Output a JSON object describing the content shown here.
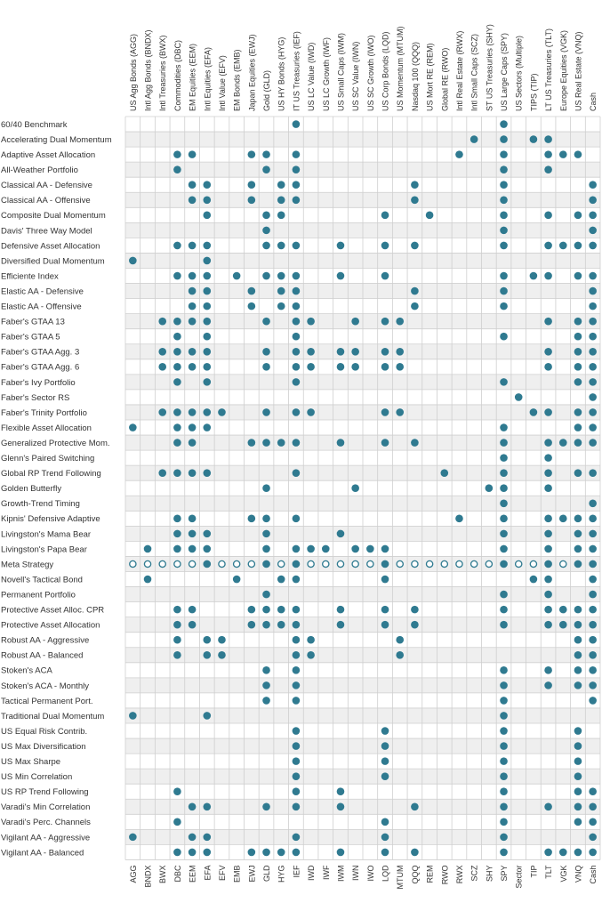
{
  "chart_data": {
    "type": "table",
    "title": "",
    "columns": [
      {
        "name": "US Agg Bonds (AGG)",
        "ticker": "AGG"
      },
      {
        "name": "Intl Agg Bonds (BNDX)",
        "ticker": "BNDX"
      },
      {
        "name": "Intl Treasuries (BWX)",
        "ticker": "BWX"
      },
      {
        "name": "Commodities (DBC)",
        "ticker": "DBC"
      },
      {
        "name": "EM Equities (EEM)",
        "ticker": "EEM"
      },
      {
        "name": "Intl Equities (EFA)",
        "ticker": "EFA"
      },
      {
        "name": "Intl Value (EFV)",
        "ticker": "EFV"
      },
      {
        "name": "EM Bonds (EMB)",
        "ticker": "EMB"
      },
      {
        "name": "Japan Equities (EWJ)",
        "ticker": "EWJ"
      },
      {
        "name": "Gold (GLD)",
        "ticker": "GLD"
      },
      {
        "name": "US HY Bonds (HYG)",
        "ticker": "HYG"
      },
      {
        "name": "IT US Treasuries (IEF)",
        "ticker": "IEF"
      },
      {
        "name": "US LC Value (IWD)",
        "ticker": "IWD"
      },
      {
        "name": "US LC Growth (IWF)",
        "ticker": "IWF"
      },
      {
        "name": "US Small Caps (IWM)",
        "ticker": "IWM"
      },
      {
        "name": "US SC Value (IWN)",
        "ticker": "IWN"
      },
      {
        "name": "US SC Growth (IWO)",
        "ticker": "IWO"
      },
      {
        "name": "US Corp Bonds (LQD)",
        "ticker": "LQD"
      },
      {
        "name": "US Momentum (MTUM)",
        "ticker": "MTUM"
      },
      {
        "name": "Nasdaq 100 (QQQ)",
        "ticker": "QQQ"
      },
      {
        "name": "US Mort RE (REM)",
        "ticker": "REM"
      },
      {
        "name": "Global RE (RWO)",
        "ticker": "RWO"
      },
      {
        "name": "Intl Real Estate (RWX)",
        "ticker": "RWX"
      },
      {
        "name": "Intl Small Caps (SCZ)",
        "ticker": "SCZ"
      },
      {
        "name": "ST US Treasuries (SHY)",
        "ticker": "SHY"
      },
      {
        "name": "US Large Caps (SPY)",
        "ticker": "SPY"
      },
      {
        "name": "US Sectors (Multiple)",
        "ticker": "Sector"
      },
      {
        "name": "TIPS (TIP)",
        "ticker": "TIP"
      },
      {
        "name": "LT US Treasuries (TLT)",
        "ticker": "TLT"
      },
      {
        "name": "Europe Equities (VGK)",
        "ticker": "VGK"
      },
      {
        "name": "US Real Estate (VNQ)",
        "ticker": "VNQ"
      },
      {
        "name": "Cash",
        "ticker": "Cash"
      }
    ],
    "rows": [
      {
        "name": "60/40 Benchmark",
        "holds": [
          "IEF",
          "SPY"
        ]
      },
      {
        "name": "Accelerating Dual Momentum",
        "holds": [
          "SCZ",
          "SPY",
          "TIP",
          "TLT"
        ]
      },
      {
        "name": "Adaptive Asset Allocation",
        "holds": [
          "DBC",
          "EEM",
          "EWJ",
          "GLD",
          "IEF",
          "RWX",
          "SPY",
          "TLT",
          "VGK",
          "VNQ"
        ]
      },
      {
        "name": "All-Weather Portfolio",
        "holds": [
          "DBC",
          "GLD",
          "IEF",
          "SPY",
          "TLT"
        ]
      },
      {
        "name": "Classical AA - Defensive",
        "holds": [
          "EEM",
          "EFA",
          "EWJ",
          "HYG",
          "IEF",
          "QQQ",
          "SPY",
          "Cash"
        ]
      },
      {
        "name": "Classical AA - Offensive",
        "holds": [
          "EEM",
          "EFA",
          "EWJ",
          "HYG",
          "IEF",
          "QQQ",
          "SPY",
          "Cash"
        ]
      },
      {
        "name": "Composite Dual Momentum",
        "holds": [
          "EFA",
          "GLD",
          "HYG",
          "LQD",
          "REM",
          "SPY",
          "TLT",
          "VNQ",
          "Cash"
        ]
      },
      {
        "name": "Davis' Three Way Model",
        "holds": [
          "GLD",
          "SPY",
          "Cash"
        ]
      },
      {
        "name": "Defensive Asset Allocation",
        "holds": [
          "DBC",
          "EEM",
          "EFA",
          "GLD",
          "HYG",
          "IEF",
          "IWM",
          "LQD",
          "QQQ",
          "SPY",
          "TLT",
          "VGK",
          "VNQ",
          "Cash"
        ]
      },
      {
        "name": "Diversified Dual Momentum",
        "holds": [
          "AGG",
          "EFA"
        ]
      },
      {
        "name": "Efficiente Index",
        "holds": [
          "DBC",
          "EEM",
          "EFA",
          "EMB",
          "GLD",
          "HYG",
          "IEF",
          "IWM",
          "LQD",
          "SPY",
          "TIP",
          "TLT",
          "VNQ",
          "Cash"
        ]
      },
      {
        "name": "Elastic AA - Defensive",
        "holds": [
          "EEM",
          "EFA",
          "EWJ",
          "HYG",
          "IEF",
          "QQQ",
          "SPY",
          "Cash"
        ]
      },
      {
        "name": "Elastic AA - Offensive",
        "holds": [
          "EEM",
          "EFA",
          "EWJ",
          "HYG",
          "IEF",
          "QQQ",
          "SPY",
          "Cash"
        ]
      },
      {
        "name": "Faber's GTAA 13",
        "holds": [
          "BWX",
          "DBC",
          "EEM",
          "EFA",
          "GLD",
          "IEF",
          "IWD",
          "IWN",
          "LQD",
          "MTUM",
          "TLT",
          "VNQ",
          "Cash"
        ]
      },
      {
        "name": "Faber's GTAA 5",
        "holds": [
          "DBC",
          "EFA",
          "IEF",
          "SPY",
          "VNQ",
          "Cash"
        ]
      },
      {
        "name": "Faber's GTAA Agg. 3",
        "holds": [
          "BWX",
          "DBC",
          "EEM",
          "EFA",
          "GLD",
          "IEF",
          "IWD",
          "IWM",
          "IWN",
          "LQD",
          "MTUM",
          "TLT",
          "VNQ",
          "Cash"
        ]
      },
      {
        "name": "Faber's GTAA Agg. 6",
        "holds": [
          "BWX",
          "DBC",
          "EEM",
          "EFA",
          "GLD",
          "IEF",
          "IWD",
          "IWM",
          "IWN",
          "LQD",
          "MTUM",
          "TLT",
          "VNQ",
          "Cash"
        ]
      },
      {
        "name": "Faber's Ivy Portfolio",
        "holds": [
          "DBC",
          "EFA",
          "IEF",
          "SPY",
          "VNQ",
          "Cash"
        ]
      },
      {
        "name": "Faber's Sector RS",
        "holds": [
          "Sector",
          "Cash"
        ]
      },
      {
        "name": "Faber's Trinity Portfolio",
        "holds": [
          "BWX",
          "DBC",
          "EEM",
          "EFA",
          "EFV",
          "GLD",
          "IEF",
          "IWD",
          "LQD",
          "MTUM",
          "TIP",
          "TLT",
          "VNQ",
          "Cash"
        ]
      },
      {
        "name": "Flexible Asset Allocation",
        "holds": [
          "AGG",
          "DBC",
          "EEM",
          "EFA",
          "SPY",
          "VNQ",
          "Cash"
        ]
      },
      {
        "name": "Generalized Protective Mom.",
        "holds": [
          "DBC",
          "EEM",
          "EWJ",
          "GLD",
          "HYG",
          "IEF",
          "IWM",
          "LQD",
          "QQQ",
          "SPY",
          "TLT",
          "VGK",
          "VNQ",
          "Cash"
        ]
      },
      {
        "name": "Glenn's Paired Switching",
        "holds": [
          "SPY",
          "TLT"
        ]
      },
      {
        "name": "Global RP Trend Following",
        "holds": [
          "BWX",
          "DBC",
          "EEM",
          "EFA",
          "IEF",
          "RWO",
          "SPY",
          "TLT",
          "VNQ",
          "Cash"
        ]
      },
      {
        "name": "Golden Butterfly",
        "holds": [
          "GLD",
          "IWN",
          "SHY",
          "SPY",
          "TLT"
        ]
      },
      {
        "name": "Growth-Trend Timing",
        "holds": [
          "SPY",
          "Cash"
        ]
      },
      {
        "name": "Kipnis' Defensive Adaptive",
        "holds": [
          "DBC",
          "EEM",
          "EWJ",
          "GLD",
          "IEF",
          "RWX",
          "SPY",
          "TLT",
          "VGK",
          "VNQ",
          "Cash"
        ]
      },
      {
        "name": "Livingston's Mama Bear",
        "holds": [
          "DBC",
          "EEM",
          "EFA",
          "GLD",
          "IWM",
          "SPY",
          "TLT",
          "VNQ",
          "Cash"
        ]
      },
      {
        "name": "Livingston's Papa Bear",
        "holds": [
          "BNDX",
          "DBC",
          "EEM",
          "EFA",
          "GLD",
          "IEF",
          "IWD",
          "IWF",
          "IWN",
          "IWO",
          "LQD",
          "SPY",
          "TLT",
          "VNQ",
          "Cash"
        ]
      },
      {
        "name": "Meta Strategy",
        "holds": [
          "AGG",
          "BNDX",
          "BWX",
          "DBC",
          "EEM",
          "EFA",
          "EFV",
          "EMB",
          "EWJ",
          "GLD",
          "HYG",
          "IEF",
          "IWD",
          "IWF",
          "IWM",
          "IWN",
          "IWO",
          "LQD",
          "MTUM",
          "QQQ",
          "REM",
          "RWO",
          "RWX",
          "SCZ",
          "SHY",
          "SPY",
          "Sector",
          "TIP",
          "TLT",
          "VGK",
          "VNQ",
          "Cash"
        ],
        "filled": [
          "EFA",
          "GLD",
          "IEF",
          "LQD",
          "SPY",
          "TLT",
          "VNQ",
          "Cash"
        ]
      },
      {
        "name": "Novell's Tactical Bond",
        "holds": [
          "BNDX",
          "EMB",
          "HYG",
          "IEF",
          "LQD",
          "TIP",
          "TLT",
          "Cash"
        ]
      },
      {
        "name": "Permanent Portfolio",
        "holds": [
          "GLD",
          "SPY",
          "TLT",
          "Cash"
        ]
      },
      {
        "name": "Protective Asset Alloc. CPR",
        "holds": [
          "DBC",
          "EEM",
          "EWJ",
          "GLD",
          "HYG",
          "IEF",
          "IWM",
          "LQD",
          "QQQ",
          "SPY",
          "TLT",
          "VGK",
          "VNQ",
          "Cash"
        ]
      },
      {
        "name": "Protective Asset Allocation",
        "holds": [
          "DBC",
          "EEM",
          "EWJ",
          "GLD",
          "HYG",
          "IEF",
          "IWM",
          "LQD",
          "QQQ",
          "SPY",
          "TLT",
          "VGK",
          "VNQ",
          "Cash"
        ]
      },
      {
        "name": "Robust AA - Aggressive",
        "holds": [
          "DBC",
          "EFA",
          "EFV",
          "IEF",
          "IWD",
          "MTUM",
          "VNQ",
          "Cash"
        ]
      },
      {
        "name": "Robust AA - Balanced",
        "holds": [
          "DBC",
          "EFA",
          "EFV",
          "IEF",
          "IWD",
          "MTUM",
          "VNQ",
          "Cash"
        ]
      },
      {
        "name": "Stoken's ACA",
        "holds": [
          "GLD",
          "IEF",
          "SPY",
          "TLT",
          "VNQ",
          "Cash"
        ]
      },
      {
        "name": "Stoken's ACA - Monthly",
        "holds": [
          "GLD",
          "IEF",
          "SPY",
          "TLT",
          "VNQ",
          "Cash"
        ]
      },
      {
        "name": "Tactical Permanent Port.",
        "holds": [
          "GLD",
          "IEF",
          "SPY",
          "Cash"
        ]
      },
      {
        "name": "Traditional Dual Momentum",
        "holds": [
          "AGG",
          "EFA",
          "SPY"
        ]
      },
      {
        "name": "US Equal Risk Contrib.",
        "holds": [
          "IEF",
          "LQD",
          "SPY",
          "VNQ"
        ]
      },
      {
        "name": "US Max Diversification",
        "holds": [
          "IEF",
          "LQD",
          "SPY",
          "VNQ"
        ]
      },
      {
        "name": "US Max Sharpe",
        "holds": [
          "IEF",
          "LQD",
          "SPY",
          "VNQ"
        ]
      },
      {
        "name": "US Min Correlation",
        "holds": [
          "IEF",
          "LQD",
          "SPY",
          "VNQ"
        ]
      },
      {
        "name": "US RP Trend Following",
        "holds": [
          "DBC",
          "IEF",
          "IWM",
          "SPY",
          "VNQ",
          "Cash"
        ]
      },
      {
        "name": "Varadi's Min Correlation",
        "holds": [
          "EEM",
          "EFA",
          "GLD",
          "IEF",
          "IWM",
          "QQQ",
          "SPY",
          "TLT",
          "VNQ",
          "Cash"
        ]
      },
      {
        "name": "Varadi's Perc. Channels",
        "holds": [
          "DBC",
          "LQD",
          "SPY",
          "VNQ",
          "Cash"
        ]
      },
      {
        "name": "Vigilant AA - Aggressive",
        "holds": [
          "AGG",
          "EEM",
          "EFA",
          "IEF",
          "LQD",
          "SPY",
          "Cash"
        ]
      },
      {
        "name": "Vigilant AA - Balanced",
        "holds": [
          "DBC",
          "EEM",
          "EFA",
          "EWJ",
          "GLD",
          "HYG",
          "IEF",
          "IWM",
          "LQD",
          "QQQ",
          "SPY",
          "TLT",
          "VGK",
          "VNQ",
          "Cash"
        ]
      }
    ],
    "colors": {
      "dot": "#2f7a90",
      "grid": "#cfcfcf",
      "stripe": "#efefef",
      "text": "#333333"
    }
  }
}
